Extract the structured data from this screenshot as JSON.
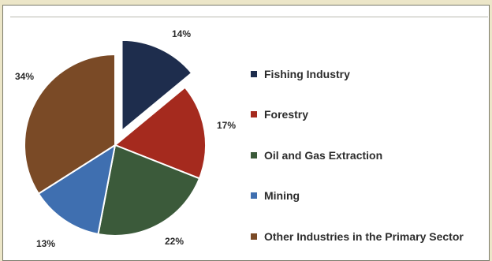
{
  "chart_data": {
    "type": "pie",
    "title": "",
    "categories": [
      "Fishing Industry",
      "Forestry",
      "Oil and Gas Extraction",
      "Mining",
      "Other Industries in the Primary Sector"
    ],
    "values": [
      14,
      17,
      22,
      13,
      34
    ],
    "labels": [
      "14%",
      "17%",
      "22%",
      "13%",
      "34%"
    ],
    "colors": [
      "#1e2d4d",
      "#a52a1e",
      "#3b5a3a",
      "#3f6fb0",
      "#7a4a26"
    ],
    "exploded": [
      "Fishing Industry"
    ],
    "legend_placement": "right"
  }
}
